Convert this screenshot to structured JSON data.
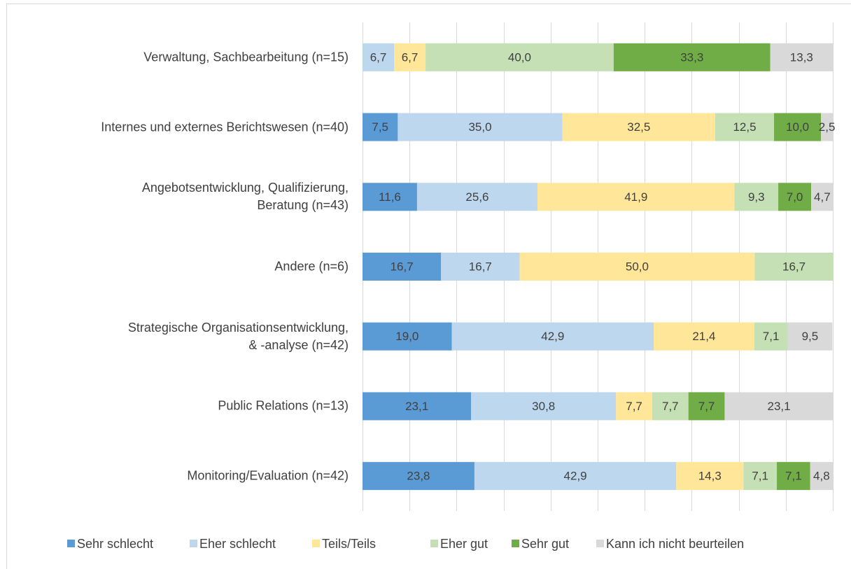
{
  "chart_data": {
    "type": "stacked-bar-horizontal",
    "categories": [
      "Verwaltung, Sachbearbeitung (n=15)",
      "Internes und externes Berichtswesen (n=40)",
      "Angebotsentwicklung, Qualifizierung,\nBeratung (n=43)",
      "Andere (n=6)",
      "Strategische Organisationsentwicklung,\n& -analyse (n=42)",
      "Public Relations (n=13)",
      "Monitoring/Evaluation (n=42)"
    ],
    "series": [
      {
        "name": "Sehr schlecht",
        "color": "#5b9bd5",
        "values": [
          0,
          7.5,
          11.6,
          16.7,
          19.0,
          23.1,
          23.8
        ],
        "value_labels": [
          null,
          "7,5",
          "11,6",
          "16,7",
          "19,0",
          "23,1",
          "23,8"
        ]
      },
      {
        "name": "Eher schlecht",
        "color": "#bdd7ee",
        "values": [
          6.7,
          35.0,
          25.6,
          16.7,
          42.9,
          30.8,
          42.9
        ],
        "value_labels": [
          "6,7",
          "35,0",
          "25,6",
          "16,7",
          "42,9",
          "30,8",
          "42,9"
        ]
      },
      {
        "name": "Teils/Teils",
        "color": "#ffe699",
        "values": [
          6.7,
          32.5,
          41.9,
          50.0,
          21.4,
          7.7,
          14.3
        ],
        "value_labels": [
          "6,7",
          "32,5",
          "41,9",
          "50,0",
          "21,4",
          "7,7",
          "14,3"
        ]
      },
      {
        "name": "Eher gut",
        "color": "#c5e0b4",
        "values": [
          40.0,
          12.5,
          9.3,
          16.7,
          7.1,
          7.7,
          7.1
        ],
        "value_labels": [
          "40,0",
          "12,5",
          "9,3",
          "16,7",
          "7,1",
          "7,7",
          "7,1"
        ]
      },
      {
        "name": "Sehr gut",
        "color": "#70ad47",
        "values": [
          33.3,
          10.0,
          7.0,
          0,
          0,
          7.7,
          7.1
        ],
        "value_labels": [
          "33,3",
          "10,0",
          "7,0",
          null,
          null,
          "7,7",
          "7,1"
        ]
      },
      {
        "name": "Kann ich nicht beurteilen",
        "color": "#d9d9d9",
        "values": [
          13.3,
          2.5,
          4.7,
          0,
          9.5,
          23.1,
          4.8
        ],
        "value_labels": [
          "13,3",
          "2,5",
          "4,7",
          null,
          "9,5",
          "23,1",
          "4,8"
        ]
      }
    ],
    "xlim": [
      0,
      100
    ],
    "xticks": [
      0,
      10,
      20,
      30,
      40,
      50,
      60,
      70,
      80,
      90,
      100
    ],
    "grid": true,
    "legend": "bottom"
  }
}
